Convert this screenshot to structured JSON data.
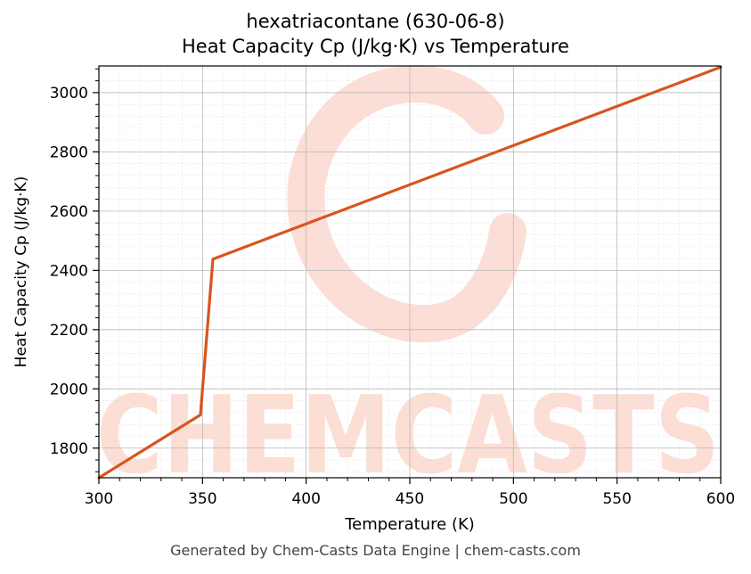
{
  "chart_data": {
    "type": "line",
    "title": "hexatriacontane (630-06-8)",
    "subtitle": "Heat Capacity Cp (J/kg·K) vs Temperature",
    "xlabel": "Temperature (K)",
    "ylabel": "Heat Capacity Cp (J/kg·K)",
    "xlim": [
      300,
      600
    ],
    "ylim": [
      1700,
      3090
    ],
    "xticks": [
      300,
      350,
      400,
      450,
      500,
      550,
      600
    ],
    "yticks": [
      1800,
      2000,
      2200,
      2400,
      2600,
      2800,
      3000
    ],
    "grid": true,
    "line_color": "#d9541e",
    "series": [
      {
        "x": [
          300,
          349,
          355,
          600
        ],
        "y": [
          1700,
          1912,
          2438,
          3086
        ]
      }
    ]
  },
  "watermark": {
    "text": "CHEMCASTS",
    "color": "#fbd3c8"
  },
  "footer": "Generated by Chem-Casts Data Engine | chem-casts.com"
}
